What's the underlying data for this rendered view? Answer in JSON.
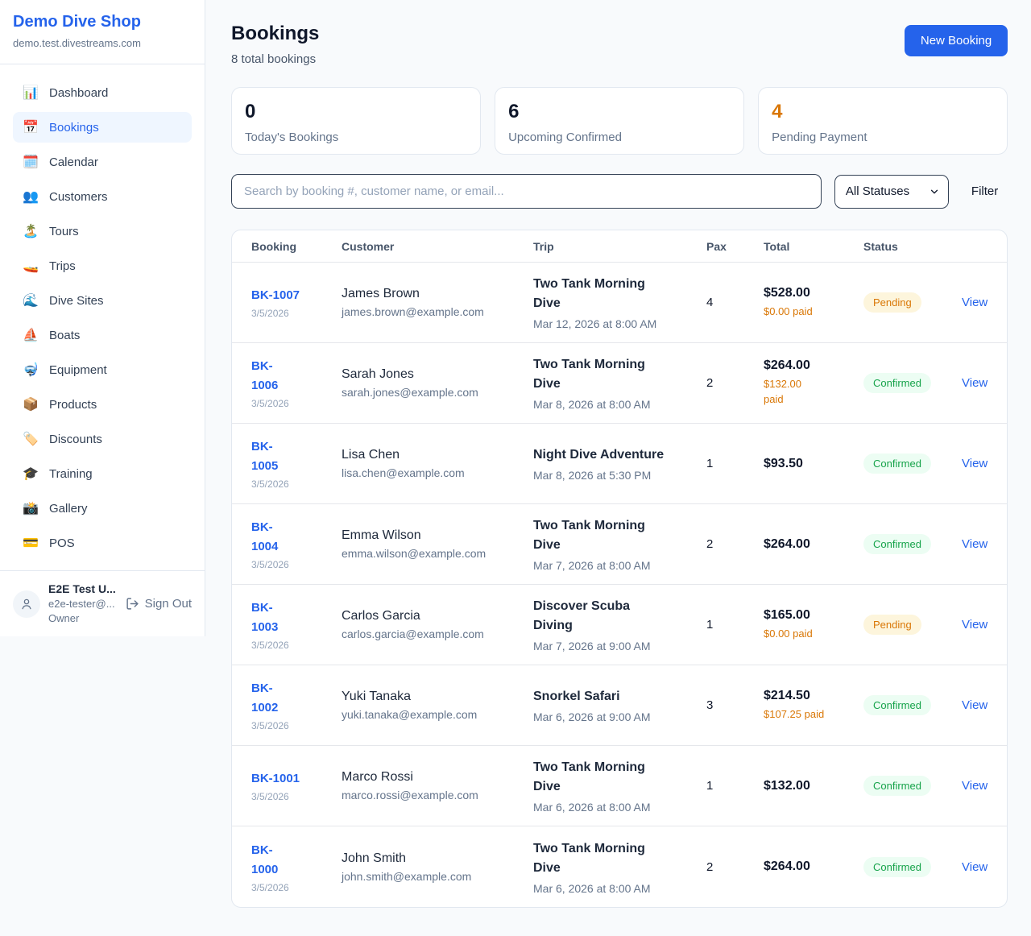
{
  "colors": {
    "accent_blue": "#2563eb",
    "pending_orange": "#d97706",
    "confirmed_green": "#16a34a",
    "page_bg": "#f8fafc"
  },
  "sidebar": {
    "brand": "Demo Dive Shop",
    "domain": "demo.test.divestreams.com",
    "items": [
      {
        "label": "Dashboard",
        "icon": "📊",
        "icon_name": "bar-chart-icon",
        "active": false
      },
      {
        "label": "Bookings",
        "icon": "📅",
        "icon_name": "calendar-icon",
        "active": true
      },
      {
        "label": "Calendar",
        "icon": "🗓️",
        "icon_name": "spiral-calendar-icon",
        "active": false
      },
      {
        "label": "Customers",
        "icon": "👥",
        "icon_name": "people-icon",
        "active": false
      },
      {
        "label": "Tours",
        "icon": "🏝️",
        "icon_name": "island-icon",
        "active": false
      },
      {
        "label": "Trips",
        "icon": "🚤",
        "icon_name": "speedboat-icon",
        "active": false
      },
      {
        "label": "Dive Sites",
        "icon": "🌊",
        "icon_name": "wave-icon",
        "active": false
      },
      {
        "label": "Boats",
        "icon": "⛵",
        "icon_name": "sailboat-icon",
        "active": false
      },
      {
        "label": "Equipment",
        "icon": "🤿",
        "icon_name": "diving-mask-icon",
        "active": false
      },
      {
        "label": "Products",
        "icon": "📦",
        "icon_name": "package-icon",
        "active": false
      },
      {
        "label": "Discounts",
        "icon": "🏷️",
        "icon_name": "tag-icon",
        "active": false
      },
      {
        "label": "Training",
        "icon": "🎓",
        "icon_name": "graduation-cap-icon",
        "active": false
      },
      {
        "label": "Gallery",
        "icon": "📸",
        "icon_name": "camera-icon",
        "active": false
      },
      {
        "label": "POS",
        "icon": "💳",
        "icon_name": "credit-card-icon",
        "active": false
      }
    ],
    "user": {
      "name": "E2E Test U...",
      "email": "e2e-tester@...",
      "role": "Owner",
      "sign_out_label": "Sign Out"
    }
  },
  "header": {
    "title": "Bookings",
    "subtitle": "8 total bookings",
    "new_booking_label": "New Booking"
  },
  "stats": [
    {
      "value": "0",
      "label": "Today's Bookings",
      "accent": false
    },
    {
      "value": "6",
      "label": "Upcoming Confirmed",
      "accent": false
    },
    {
      "value": "4",
      "label": "Pending Payment",
      "accent": true
    }
  ],
  "controls": {
    "search_placeholder": "Search by booking #, customer name, or email...",
    "status_filter_value": "All Statuses",
    "filter_label": "Filter"
  },
  "table": {
    "columns": [
      "Booking",
      "Customer",
      "Trip",
      "Pax",
      "Total",
      "Status"
    ],
    "rows": [
      {
        "code_lines": [
          "BK-1007"
        ],
        "date": "3/5/2026",
        "customer": "James Brown",
        "email": "james.brown@example.com",
        "trip_lines": [
          "Two Tank Morning",
          "Dive"
        ],
        "trip_datetime": "Mar 12, 2026 at 8:00 AM",
        "pax": "4",
        "total": "$528.00",
        "paid_lines": [
          "$0.00 paid"
        ],
        "status": "Pending",
        "action": "View"
      },
      {
        "code_lines": [
          "BK-",
          "1006"
        ],
        "date": "3/5/2026",
        "customer": "Sarah Jones",
        "email": "sarah.jones@example.com",
        "trip_lines": [
          "Two Tank Morning",
          "Dive"
        ],
        "trip_datetime": "Mar 8, 2026 at 8:00 AM",
        "pax": "2",
        "total": "$264.00",
        "paid_lines": [
          "$132.00",
          "paid"
        ],
        "status": "Confirmed",
        "action": "View"
      },
      {
        "code_lines": [
          "BK-",
          "1005"
        ],
        "date": "3/5/2026",
        "customer": "Lisa Chen",
        "email": "lisa.chen@example.com",
        "trip_lines": [
          "Night Dive Adventure"
        ],
        "trip_datetime": "Mar 8, 2026 at 5:30 PM",
        "pax": "1",
        "total": "$93.50",
        "paid_lines": null,
        "status": "Confirmed",
        "action": "View"
      },
      {
        "code_lines": [
          "BK-",
          "1004"
        ],
        "date": "3/5/2026",
        "customer": "Emma Wilson",
        "email": "emma.wilson@example.com",
        "trip_lines": [
          "Two Tank Morning",
          "Dive"
        ],
        "trip_datetime": "Mar 7, 2026 at 8:00 AM",
        "pax": "2",
        "total": "$264.00",
        "paid_lines": null,
        "status": "Confirmed",
        "action": "View"
      },
      {
        "code_lines": [
          "BK-",
          "1003"
        ],
        "date": "3/5/2026",
        "customer": "Carlos Garcia",
        "email": "carlos.garcia@example.com",
        "trip_lines": [
          "Discover Scuba",
          "Diving"
        ],
        "trip_datetime": "Mar 7, 2026 at 9:00 AM",
        "pax": "1",
        "total": "$165.00",
        "paid_lines": [
          "$0.00 paid"
        ],
        "status": "Pending",
        "action": "View"
      },
      {
        "code_lines": [
          "BK-",
          "1002"
        ],
        "date": "3/5/2026",
        "customer": "Yuki Tanaka",
        "email": "yuki.tanaka@example.com",
        "trip_lines": [
          "Snorkel Safari"
        ],
        "trip_datetime": "Mar 6, 2026 at 9:00 AM",
        "pax": "3",
        "total": "$214.50",
        "paid_lines": [
          "$107.25 paid"
        ],
        "status": "Confirmed",
        "action": "View"
      },
      {
        "code_lines": [
          "BK-1001"
        ],
        "date": "3/5/2026",
        "customer": "Marco Rossi",
        "email": "marco.rossi@example.com",
        "trip_lines": [
          "Two Tank Morning",
          "Dive"
        ],
        "trip_datetime": "Mar 6, 2026 at 8:00 AM",
        "pax": "1",
        "total": "$132.00",
        "paid_lines": null,
        "status": "Confirmed",
        "action": "View"
      },
      {
        "code_lines": [
          "BK-",
          "1000"
        ],
        "date": "3/5/2026",
        "customer": "John Smith",
        "email": "john.smith@example.com",
        "trip_lines": [
          "Two Tank Morning",
          "Dive"
        ],
        "trip_datetime": "Mar 6, 2026 at 8:00 AM",
        "pax": "2",
        "total": "$264.00",
        "paid_lines": null,
        "status": "Confirmed",
        "action": "View"
      }
    ]
  }
}
